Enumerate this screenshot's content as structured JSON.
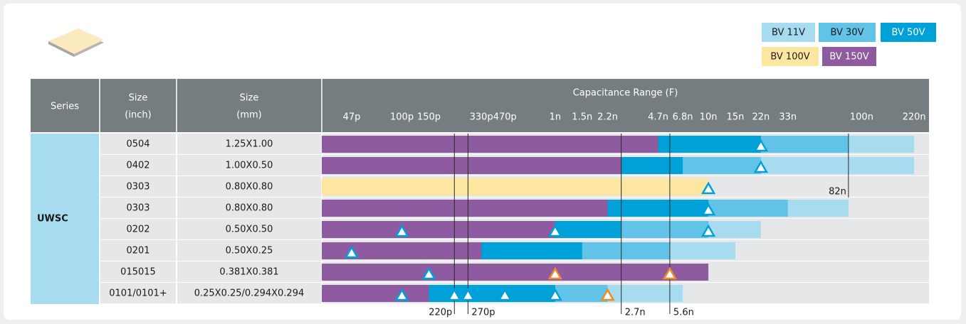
{
  "chart_data": {
    "type": "capacitance-range",
    "header": {
      "series": "Series",
      "inch": [
        "Size",
        "(inch)"
      ],
      "mm": [
        "Size",
        "(mm)"
      ]
    },
    "title": "Capacitance Range (F)",
    "series_label": "UWSC",
    "rows": [
      {
        "inch": "0504",
        "mm": "1.25X1.00",
        "markers": [
          {
            "value": 22000,
            "color": "#00a0d8"
          }
        ]
      },
      {
        "inch": "0402",
        "mm": "1.00X0.50",
        "markers": [
          {
            "value": 22000,
            "color": "#00a0d8"
          }
        ]
      },
      {
        "inch": "0303",
        "mm": "0.80X0.80",
        "markers": [
          {
            "value": 10000,
            "color": "#00a0d8"
          }
        ],
        "annotation": {
          "value": 82000,
          "label": "82n"
        }
      },
      {
        "inch": "0303",
        "mm": "0.80X0.80",
        "markers": [
          {
            "value": 10000,
            "color": "#00a0d8"
          }
        ]
      },
      {
        "inch": "0202",
        "mm": "0.50X0.50",
        "markers": [
          {
            "value": 100,
            "color": "#00a0d8"
          },
          {
            "value": 1000,
            "color": "#00a0d8"
          },
          {
            "value": 10000,
            "color": "#00a0d8"
          }
        ]
      },
      {
        "inch": "0201",
        "mm": "0.50X0.25",
        "markers": [
          {
            "value": 47,
            "color": "#00a0d8"
          }
        ]
      },
      {
        "inch": "015015",
        "mm": "0.381X0.381",
        "markers": [
          {
            "value": 150,
            "color": "#00a0d8"
          },
          {
            "value": 1000,
            "color": "#f08a24"
          },
          {
            "value": 5600,
            "color": "#f08a24"
          }
        ]
      },
      {
        "inch": "0101/0101+",
        "mm": "0.25X0.25/0.294X0.294",
        "markers": [
          {
            "value": 100,
            "color": "#00a0d8"
          },
          {
            "value": 220,
            "color": "#00a0d8"
          },
          {
            "value": 270,
            "color": "#00a0d8"
          },
          {
            "value": 470,
            "color": "#00a0d8"
          },
          {
            "value": 1000,
            "color": "#00a0d8"
          },
          {
            "value": 2200,
            "color": "#f08a24"
          }
        ]
      }
    ],
    "series": [
      {
        "name": "BV 11V",
        "color": "#a6dbf0",
        "text_color": "#1a1a1a",
        "values": [
          220000,
          220000,
          null,
          82000,
          22000,
          15000,
          null,
          6800
        ]
      },
      {
        "name": "BV 30V",
        "color": "#62c3e8",
        "text_color": "#1a1a1a",
        "values": [
          82000,
          22000,
          null,
          33000,
          10000,
          5600,
          null,
          2200
        ]
      },
      {
        "name": "BV 50V",
        "color": "#00a0d8",
        "text_color": "#ffffff",
        "values": [
          22000,
          6800,
          null,
          10000,
          2700,
          1500,
          null,
          1000
        ]
      },
      {
        "name": "BV 100V",
        "color": "#fde6a0",
        "text_color": "#1a1a1a",
        "values": [
          null,
          null,
          10000,
          null,
          null,
          null,
          null,
          null
        ]
      },
      {
        "name": "BV 150V",
        "color": "#8e5aa0",
        "text_color": "#ffffff",
        "values": [
          4700,
          2700,
          null,
          2200,
          1000,
          330,
          10000,
          150
        ]
      }
    ],
    "xscale": "log",
    "xlim": [
      30,
      275000
    ],
    "xticks": [
      {
        "value": 47,
        "label": "47p"
      },
      {
        "value": 100,
        "label": "100p"
      },
      {
        "value": 150,
        "label": "150p"
      },
      {
        "value": 330,
        "label": "330p"
      },
      {
        "value": 470,
        "label": "470p"
      },
      {
        "value": 1000,
        "label": "1n"
      },
      {
        "value": 1500,
        "label": "1.5n"
      },
      {
        "value": 2200,
        "label": "2.2n"
      },
      {
        "value": 4700,
        "label": "4.7n"
      },
      {
        "value": 6800,
        "label": "6.8n"
      },
      {
        "value": 10000,
        "label": "10n"
      },
      {
        "value": 15000,
        "label": "15n"
      },
      {
        "value": 22000,
        "label": "22n"
      },
      {
        "value": 33000,
        "label": "33n"
      },
      {
        "value": 100000,
        "label": "100n"
      },
      {
        "value": 220000,
        "label": "220n"
      }
    ],
    "reference_lines": [
      {
        "value": 220,
        "label": "220p"
      },
      {
        "value": 270,
        "label": "270p"
      },
      {
        "value": 2700,
        "label": "2.7n"
      },
      {
        "value": 5600,
        "label": "5.6n"
      }
    ]
  }
}
